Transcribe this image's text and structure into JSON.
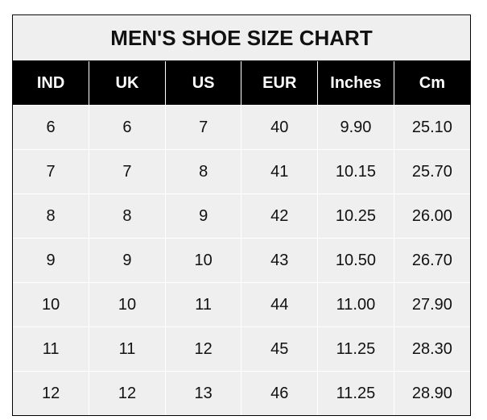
{
  "title": "MEN'S SHOE SIZE CHART",
  "headers": [
    "IND",
    "UK",
    "US",
    "EUR",
    "Inches",
    "Cm"
  ],
  "rows": [
    [
      "6",
      "6",
      "7",
      "40",
      "9.90",
      "25.10"
    ],
    [
      "7",
      "7",
      "8",
      "41",
      "10.15",
      "25.70"
    ],
    [
      "8",
      "8",
      "9",
      "42",
      "10.25",
      "26.00"
    ],
    [
      "9",
      "9",
      "10",
      "43",
      "10.50",
      "26.70"
    ],
    [
      "10",
      "10",
      "11",
      "44",
      "11.00",
      "27.90"
    ],
    [
      "11",
      "11",
      "12",
      "45",
      "11.25",
      "28.30"
    ],
    [
      "12",
      "12",
      "13",
      "46",
      "11.25",
      "28.90"
    ]
  ]
}
